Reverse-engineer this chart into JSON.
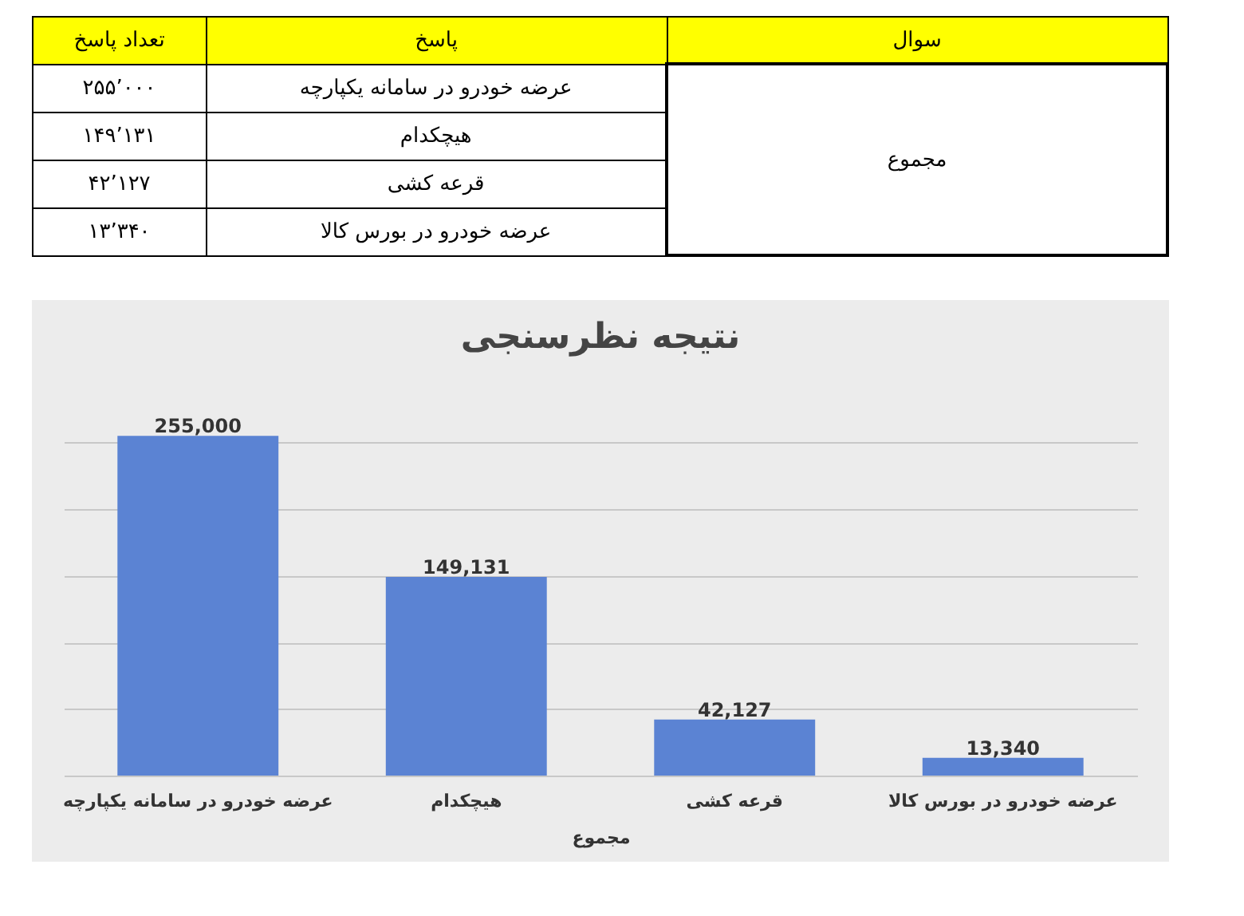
{
  "chart_data": {
    "type": "bar",
    "title": "نتیجه نظرسنجی",
    "xlabel": "مجموع",
    "categories": [
      "عرضه خودرو در سامانه یکپارچه",
      "هیچکدام",
      "قرعه کشی",
      "عرضه خودرو در بورس کالا"
    ],
    "values": [
      255000,
      149131,
      42127,
      13340
    ],
    "color": "#5b83d3",
    "value_labels": [
      "255,000",
      "149,131",
      "42,127",
      "13,340"
    ],
    "grid": "y",
    "tick_labels": "x",
    "annotations": [
      "سوال",
      "پاسخ",
      "تعداد پاسخ",
      "۲۵۵٬۰۰۰",
      "۱۴۹٬۱۳۱",
      "۴۲٬۱۲۷",
      "۱۳٬۳۴۰"
    ]
  }
}
